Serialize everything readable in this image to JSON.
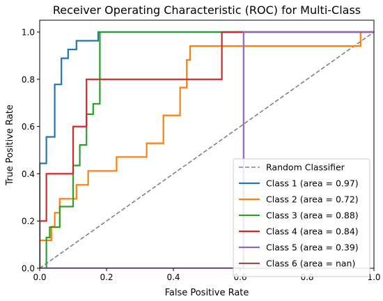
{
  "chart_data": {
    "type": "line",
    "title": "Receiver Operating Characteristic (ROC) for Multi-Class",
    "xlabel": "False Positive Rate",
    "ylabel": "True Positive Rate",
    "xlim": [
      0.0,
      1.0
    ],
    "ylim": [
      0.0,
      1.05
    ],
    "xticks": [
      "0.0",
      "0.2",
      "0.4",
      "0.6",
      "0.8",
      "1.0"
    ],
    "yticks": [
      "0.0",
      "0.2",
      "0.4",
      "0.6",
      "0.8",
      "1.0"
    ],
    "grid": false,
    "legend_position": "lower-right",
    "baseline": {
      "name": "Random Classifier",
      "color": "#808080",
      "x": [
        0,
        1
      ],
      "y": [
        0,
        1
      ]
    },
    "series": [
      {
        "name": "Class 1 (area = 0.97)",
        "color": "#1f77b4",
        "x": [
          0,
          0,
          0.02,
          0.02,
          0.045,
          0.045,
          0.065,
          0.065,
          0.085,
          0.085,
          0.11,
          0.11,
          0.175,
          0.175,
          1
        ],
        "y": [
          0,
          0.444,
          0.444,
          0.556,
          0.556,
          0.778,
          0.778,
          0.889,
          0.889,
          0.926,
          0.926,
          0.963,
          0.963,
          1,
          1
        ]
      },
      {
        "name": "Class 2 (area = 0.72)",
        "color": "#ff7f0e",
        "x": [
          0,
          0,
          0.035,
          0.035,
          0.045,
          0.045,
          0.06,
          0.06,
          0.1,
          0.1,
          0.11,
          0.11,
          0.145,
          0.145,
          0.23,
          0.23,
          0.32,
          0.32,
          0.37,
          0.37,
          0.42,
          0.42,
          0.44,
          0.44,
          0.45,
          0.45,
          0.96,
          0.96,
          1
        ],
        "y": [
          0,
          0.118,
          0.118,
          0.176,
          0.176,
          0.235,
          0.235,
          0.294,
          0.294,
          0.294,
          0.294,
          0.353,
          0.353,
          0.412,
          0.412,
          0.471,
          0.471,
          0.529,
          0.529,
          0.647,
          0.647,
          0.765,
          0.765,
          0.882,
          0.882,
          0.941,
          0.941,
          1,
          1
        ]
      },
      {
        "name": "Class 3 (area = 0.88)",
        "color": "#2ca02c",
        "x": [
          0.02,
          0.02,
          0.03,
          0.03,
          0.045,
          0.045,
          0.06,
          0.06,
          0.1,
          0.1,
          0.12,
          0.12,
          0.14,
          0.14,
          0.16,
          0.16,
          0.18,
          0.18,
          1
        ],
        "y": [
          0,
          0.13,
          0.13,
          0.174,
          0.174,
          0.174,
          0.174,
          0.261,
          0.261,
          0.435,
          0.435,
          0.522,
          0.522,
          0.652,
          0.652,
          0.696,
          0.696,
          1,
          1
        ]
      },
      {
        "name": "Class 4 (area = 0.84)",
        "color": "#d62728",
        "x": [
          0,
          0,
          0.02,
          0.02,
          0.1,
          0.1,
          0.14,
          0.14,
          0.545,
          0.545,
          1
        ],
        "y": [
          0,
          0.2,
          0.2,
          0.4,
          0.4,
          0.6,
          0.6,
          0.8,
          0.8,
          1,
          1
        ]
      },
      {
        "name": "Class 5 (area = 0.39)",
        "color": "#9467bd",
        "x": [
          0,
          0.61,
          0.61,
          1
        ],
        "y": [
          0,
          0,
          1,
          1
        ]
      },
      {
        "name": "Class 6 (area = nan)",
        "color": "#8c564b",
        "x": [],
        "y": []
      }
    ]
  }
}
